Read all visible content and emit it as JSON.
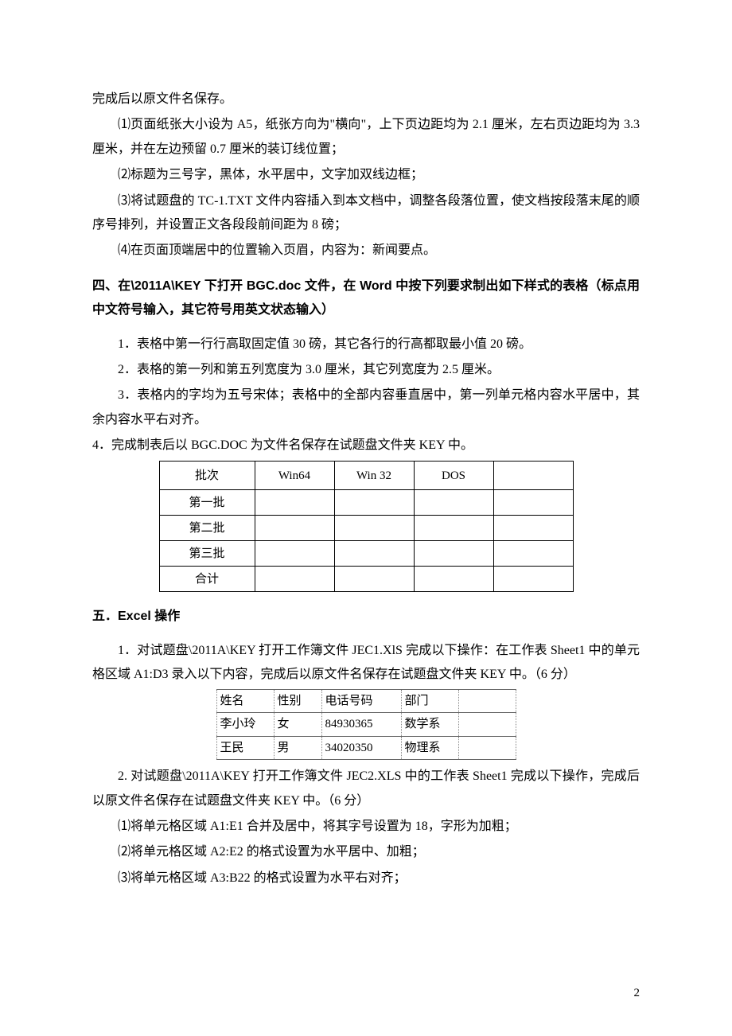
{
  "intro_line": "完成后以原文件名保存。",
  "items_a": [
    "⑴页面纸张大小设为 A5，纸张方向为\"横向\"，上下页边距均为 2.1 厘米，左右页边距均为 3.3 厘米，并在左边预留 0.7 厘米的装订线位置；",
    "⑵标题为三号字，黑体，水平居中，文字加双线边框；",
    "⑶将试题盘的 TC-1.TXT 文件内容插入到本文档中，调整各段落位置，使文档按段落末尾的顺序号排列，并设置正文各段段前间距为 8 磅；",
    "⑷在页面顶端居中的位置输入页眉，内容为：新闻要点。"
  ],
  "heading4": "四、在\\2011A\\KEY 下打开 BGC.doc 文件，在 Word 中按下列要求制出如下样式的表格（标点用中文符号输入，其它符号用英文状态输入）",
  "items_b": [
    "1．表格中第一行行高取固定值 30 磅，其它各行的行高都取最小值 20 磅。",
    "2．表格的第一列和第五列宽度为 3.0 厘米，其它列宽度为 2.5 厘米。",
    "3．表格内的字均为五号宋体；表格中的全部内容垂直居中，第一列单元格内容水平居中，其余内容水平右对齐。"
  ],
  "item_b4": "4．完成制表后以 BGC.DOC 为文件名保存在试题盘文件夹 KEY 中。",
  "table1": {
    "header": [
      "批次",
      "Win64",
      "Win 32",
      "DOS",
      ""
    ],
    "rows": [
      [
        "第一批",
        "",
        "",
        "",
        ""
      ],
      [
        "第二批",
        "",
        "",
        "",
        ""
      ],
      [
        "第三批",
        "",
        "",
        "",
        ""
      ],
      [
        "合计",
        "",
        "",
        "",
        ""
      ]
    ]
  },
  "heading5": "五．Excel 操作",
  "excel1": "1．对试题盘\\2011A\\KEY 打开工作簿文件 JEC1.XlS 完成以下操作：在工作表 Sheet1 中的单元格区域 A1:D3 录入以下内容，完成后以原文件名保存在试题盘文件夹 KEY 中。（6 分）",
  "table2": {
    "rows": [
      [
        "姓名",
        "性别",
        "电话号码",
        "部门",
        ""
      ],
      [
        "李小玲",
        "女",
        "84930365",
        "数学系",
        ""
      ],
      [
        "王民",
        "男",
        "34020350",
        "物理系",
        ""
      ]
    ]
  },
  "excel2": "2. 对试题盘\\2011A\\KEY 打开工作簿文件 JEC2.XLS 中的工作表 Sheet1 完成以下操作，完成后以原文件名保存在试题盘文件夹 KEY 中。（6 分）",
  "items_c": [
    "⑴将单元格区域 A1:E1 合并及居中，将其字号设置为 18，字形为加粗；",
    "⑵将单元格区域 A2:E2 的格式设置为水平居中、加粗；",
    "⑶将单元格区域 A3:B22 的格式设置为水平右对齐；"
  ],
  "page_number": "2"
}
